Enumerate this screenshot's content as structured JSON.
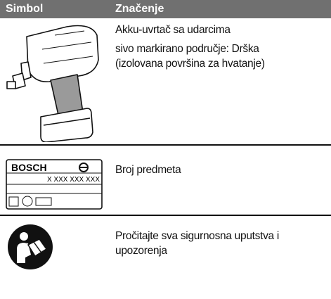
{
  "table": {
    "header": [
      "Simbol",
      "Značenje"
    ],
    "rows": [
      {
        "meaning": [
          "Akku-uvrtač sa udarcima",
          "sivo markirano područje: Drška",
          "(izolovana površina za hvatanje)"
        ]
      },
      {
        "plate_brand": "BOSCH",
        "plate_number": "X XXX XXX XXX",
        "meaning": [
          "Broj predmeta"
        ]
      },
      {
        "meaning": [
          "Pročitajte sva sigurnosna uputstva i",
          "upozorenja"
        ]
      }
    ]
  }
}
